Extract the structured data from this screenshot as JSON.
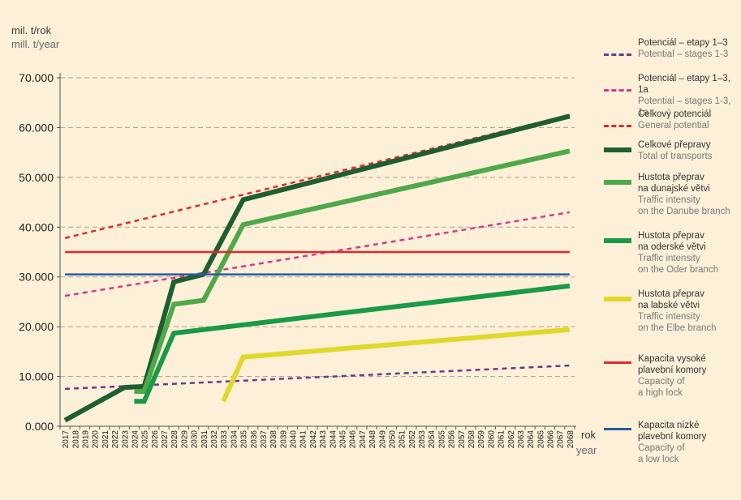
{
  "chart_data": {
    "type": "line",
    "ylabel_cz": "mil. t/rok",
    "ylabel_en": "mill. t/year",
    "xlabel_cz": "rok",
    "xlabel_en": "year",
    "ylim": [
      0,
      70000
    ],
    "yticks": [
      "0.000",
      "10.000",
      "20.000",
      "30.000",
      "40.000",
      "50.000",
      "60.000",
      "70.000"
    ],
    "ytick_values": [
      0,
      10000,
      20000,
      30000,
      40000,
      50000,
      60000,
      70000
    ],
    "x_categories": [
      "2017",
      "2018",
      "2019",
      "2020",
      "2021",
      "2022",
      "2023",
      "2024",
      "2025",
      "2026",
      "2027",
      "2028",
      "2029",
      "2030",
      "2031",
      "2032",
      "2033",
      "2034",
      "2035",
      "2036",
      "2037",
      "2038",
      "2039",
      "2040",
      "2041",
      "2042",
      "2043",
      "2044",
      "2045",
      "2046",
      "2047",
      "2048",
      "2049",
      "2050",
      "2051",
      "2052",
      "2053",
      "2054",
      "2055",
      "2056",
      "2057",
      "2058",
      "2059",
      "2060",
      "2061",
      "2062",
      "2063",
      "2064",
      "2065",
      "2066",
      "2067",
      "2068"
    ],
    "grid": "horizontal dashed",
    "legend_position": "right",
    "series": [
      {
        "name": "Potenciál – etapy 1–3",
        "name_en": "Potential – stages 1-3",
        "color": "#6b3a8c",
        "style": "dashed",
        "width": 2.5,
        "points": [
          [
            2017,
            7500
          ],
          [
            2068,
            12200
          ]
        ]
      },
      {
        "name": "Potenciál – etapy 1–3, 1a",
        "name_en": "Potential – stages 1-3, 1a",
        "color": "#d63a8a",
        "style": "dashed",
        "width": 2.5,
        "points": [
          [
            2017,
            26200
          ],
          [
            2068,
            43000
          ]
        ]
      },
      {
        "name": "Celkový potenciál",
        "name_en": "General potential",
        "color": "#e02a2a",
        "style": "dashed",
        "width": 2.5,
        "points": [
          [
            2017,
            37800
          ],
          [
            2068,
            62500
          ]
        ]
      },
      {
        "name": "Celkové přepravy",
        "name_en": "Total of transports",
        "color": "#1e5e32",
        "style": "solid",
        "width": 6,
        "points": [
          [
            2017,
            1200
          ],
          [
            2023,
            7800
          ],
          [
            2025,
            8000
          ],
          [
            2028,
            29000
          ],
          [
            2031,
            30500
          ],
          [
            2035,
            45500
          ],
          [
            2068,
            62300
          ]
        ]
      },
      {
        "name": "Hustota přeprav na dunajské větvi",
        "name_en": "Traffic intensity on the Danube branch",
        "color": "#4fa84a",
        "style": "solid",
        "width": 6,
        "points": [
          [
            2024,
            7000
          ],
          [
            2025,
            7000
          ],
          [
            2028,
            24500
          ],
          [
            2031,
            25300
          ],
          [
            2035,
            40500
          ],
          [
            2068,
            55300
          ]
        ]
      },
      {
        "name": "Hustota přeprav na oderské větvi",
        "name_en": "Traffic intensity on the Oder branch",
        "color": "#1a9a48",
        "style": "solid",
        "width": 6,
        "points": [
          [
            2024,
            5000
          ],
          [
            2025,
            5000
          ],
          [
            2028,
            18700
          ],
          [
            2068,
            28200
          ]
        ]
      },
      {
        "name": "Hustota přeprav na labské větvi",
        "name_en": "Traffic intensity on the Elbe branch",
        "color": "#e0d82a",
        "style": "solid",
        "width": 6,
        "points": [
          [
            2033,
            5000
          ],
          [
            2035,
            13900
          ],
          [
            2068,
            19400
          ]
        ]
      },
      {
        "name": "Kapacita vysoké plavební komory",
        "name_en": "Capacity of a high lock",
        "color": "#e02a2a",
        "style": "solid",
        "width": 2.5,
        "points": [
          [
            2017,
            35000
          ],
          [
            2068,
            35000
          ]
        ]
      },
      {
        "name": "Kapacita nízké plavební komory",
        "name_en": "Capacity of a low lock",
        "color": "#2a5aa0",
        "style": "solid",
        "width": 2.5,
        "points": [
          [
            2017,
            30500
          ],
          [
            2068,
            30500
          ]
        ]
      }
    ],
    "legend": [
      {
        "cz": "Potenciál – etapy 1–3",
        "en": "Potential – stages 1-3",
        "color": "#6b3a8c",
        "style": "dashed"
      },
      {
        "cz": "Potenciál – etapy 1–3, 1a",
        "en": "Potential – stages 1-3, 1a",
        "color": "#d63a8a",
        "style": "dashed"
      },
      {
        "cz": "Celkový potenciál",
        "en": "General potential",
        "color": "#e02a2a",
        "style": "dashed"
      },
      {
        "cz": "Celkové přepravy",
        "en": "Total of transports",
        "color": "#1e5e32",
        "style": "solid"
      },
      {
        "cz": "Hustota přeprav\nna dunajské větvi",
        "en": "Traffic intensity\non the Danube branch",
        "color": "#4fa84a",
        "style": "solid"
      },
      {
        "cz": "Hustota přeprav\nna oderské větvi",
        "en": "Traffic intensity\non the Oder branch",
        "color": "#1a9a48",
        "style": "solid"
      },
      {
        "cz": "Hustota přeprav\nna labské větvi",
        "en": "Traffic intensity\non the Elbe branch",
        "color": "#e0d82a",
        "style": "solid"
      },
      {
        "cz": "Kapacita vysoké\nplavební komory",
        "en": "Capacity of\na high lock",
        "color": "#e02a2a",
        "style": "solid"
      },
      {
        "cz": "Kapacita nízké\nplavební komory",
        "en": "Capacity of\na low lock",
        "color": "#2a5aa0",
        "style": "solid"
      }
    ]
  }
}
